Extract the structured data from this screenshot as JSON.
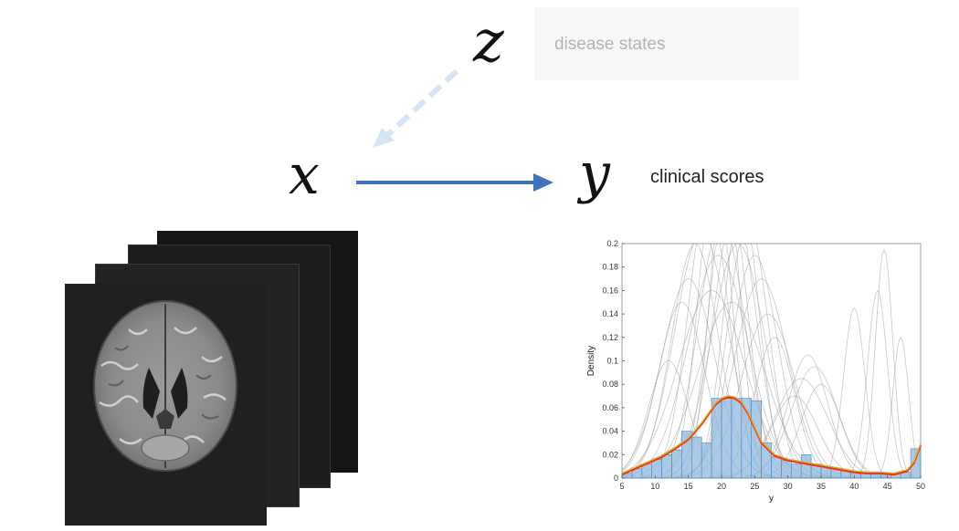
{
  "variables": {
    "z": "z",
    "x": "x",
    "y": "y"
  },
  "labels": {
    "disease_states": "disease states",
    "clinical_scores": "clinical scores"
  },
  "colors": {
    "arrow_xy": "#3f74b8",
    "arrow_zx": "#d6e4f3",
    "bar_fill": "#8fb8dc",
    "fit_orange": "#f2a51e",
    "fit_red": "#d73a2b"
  },
  "chart_data": {
    "type": "bar",
    "title": "",
    "xlabel": "y",
    "ylabel": "Density",
    "xlim": [
      5,
      50
    ],
    "ylim": [
      0,
      0.2
    ],
    "xticks": [
      5,
      10,
      15,
      20,
      25,
      30,
      35,
      40,
      45,
      50
    ],
    "yticks": [
      0,
      0.02,
      0.04,
      0.06,
      0.08,
      0.1,
      0.12,
      0.14,
      0.16,
      0.18,
      0.2
    ],
    "bins": {
      "edges": [
        5,
        6.5,
        8,
        9.5,
        11,
        12.5,
        14,
        15.5,
        17,
        18.5,
        20,
        21.5,
        23,
        24.5,
        26,
        27.5,
        29,
        30.5,
        32,
        33.5,
        35,
        36.5,
        38,
        39.5,
        41,
        42.5,
        44,
        45.5,
        47,
        48.5,
        50
      ],
      "density": [
        0.004,
        0.008,
        0.012,
        0.016,
        0.02,
        0.024,
        0.04,
        0.035,
        0.03,
        0.068,
        0.068,
        0.068,
        0.068,
        0.066,
        0.03,
        0.018,
        0.015,
        0.012,
        0.02,
        0.012,
        0.01,
        0.008,
        0.006,
        0.005,
        0.004,
        0.004,
        0.004,
        0.004,
        0.005,
        0.025
      ]
    },
    "density_curve": {
      "x": [
        5,
        7,
        9,
        11,
        13,
        15,
        17,
        19,
        20,
        21,
        22,
        23,
        24,
        26,
        28,
        30,
        32,
        34,
        36,
        38,
        40,
        42,
        44,
        46,
        48,
        49,
        50
      ],
      "y": [
        0.003,
        0.008,
        0.013,
        0.018,
        0.025,
        0.033,
        0.046,
        0.062,
        0.067,
        0.069,
        0.068,
        0.064,
        0.055,
        0.03,
        0.019,
        0.015,
        0.013,
        0.011,
        0.009,
        0.007,
        0.005,
        0.004,
        0.004,
        0.003,
        0.006,
        0.013,
        0.028
      ]
    },
    "bootstrap_curves": [
      {
        "mu": 18,
        "sigma": 3,
        "peak": 0.24
      },
      {
        "mu": 19,
        "sigma": 2.5,
        "peak": 0.26
      },
      {
        "mu": 20,
        "sigma": 3.5,
        "peak": 0.22
      },
      {
        "mu": 21,
        "sigma": 2.8,
        "peak": 0.25
      },
      {
        "mu": 22,
        "sigma": 3.2,
        "peak": 0.23
      },
      {
        "mu": 17,
        "sigma": 4,
        "peak": 0.21
      },
      {
        "mu": 23,
        "sigma": 2.6,
        "peak": 0.24
      },
      {
        "mu": 24,
        "sigma": 3,
        "peak": 0.22
      },
      {
        "mu": 16,
        "sigma": 3.5,
        "peak": 0.2
      },
      {
        "mu": 20.5,
        "sigma": 2.2,
        "peak": 0.27
      },
      {
        "mu": 19.5,
        "sigma": 4.5,
        "peak": 0.19
      },
      {
        "mu": 22.5,
        "sigma": 4,
        "peak": 0.2
      },
      {
        "mu": 25,
        "sigma": 3.5,
        "peak": 0.19
      },
      {
        "mu": 15,
        "sigma": 4,
        "peak": 0.17
      },
      {
        "mu": 26,
        "sigma": 4,
        "peak": 0.17
      },
      {
        "mu": 18.5,
        "sigma": 5,
        "peak": 0.16
      },
      {
        "mu": 21.5,
        "sigma": 5,
        "peak": 0.15
      },
      {
        "mu": 14,
        "sigma": 3.5,
        "peak": 0.15
      },
      {
        "mu": 33,
        "sigma": 3,
        "peak": 0.105
      },
      {
        "mu": 34,
        "sigma": 3.5,
        "peak": 0.095
      },
      {
        "mu": 32,
        "sigma": 4,
        "peak": 0.085
      },
      {
        "mu": 35,
        "sigma": 3,
        "peak": 0.08
      },
      {
        "mu": 31,
        "sigma": 3.5,
        "peak": 0.07
      },
      {
        "mu": 40,
        "sigma": 1.6,
        "peak": 0.145
      },
      {
        "mu": 44.5,
        "sigma": 1.3,
        "peak": 0.195
      },
      {
        "mu": 43.5,
        "sigma": 1.5,
        "peak": 0.16
      },
      {
        "mu": 47,
        "sigma": 1.2,
        "peak": 0.12
      },
      {
        "mu": 12,
        "sigma": 3,
        "peak": 0.1
      },
      {
        "mu": 28,
        "sigma": 3,
        "peak": 0.12
      },
      {
        "mu": 27,
        "sigma": 4,
        "peak": 0.14
      }
    ]
  }
}
